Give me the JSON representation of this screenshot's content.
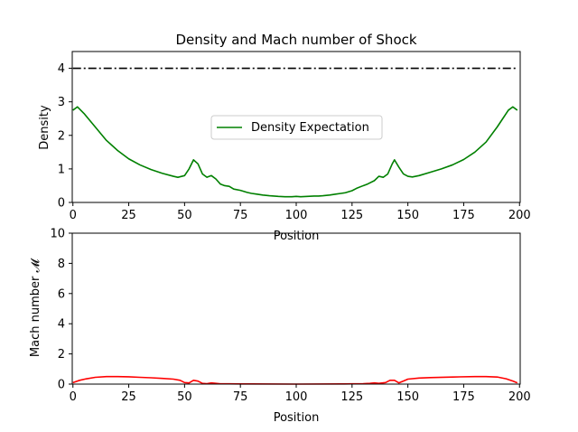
{
  "chart_data": [
    {
      "type": "line",
      "title": "Density and Mach number of Shock",
      "xlabel": "Position",
      "ylabel": "Density",
      "xlim": [
        0,
        200
      ],
      "ylim": [
        0,
        4.5
      ],
      "xticks": [
        0,
        25,
        50,
        75,
        100,
        125,
        150,
        175,
        200
      ],
      "yticks": [
        0,
        1,
        2,
        3,
        4
      ],
      "grid": false,
      "legend_position": "center",
      "series": [
        {
          "name": "Density Expectation",
          "color": "#008000",
          "style": "solid",
          "x": [
            0,
            2,
            5,
            10,
            15,
            20,
            25,
            30,
            35,
            40,
            45,
            47,
            50,
            52,
            54,
            56,
            58,
            60,
            62,
            64,
            66,
            68,
            70,
            72,
            75,
            78,
            80,
            82,
            85,
            88,
            90,
            92,
            95,
            98,
            100,
            102,
            105,
            108,
            110,
            112,
            115,
            118,
            120,
            122,
            125,
            127,
            130,
            132,
            135,
            137,
            139,
            141,
            143,
            144,
            146,
            148,
            150,
            152,
            155,
            160,
            165,
            170,
            175,
            180,
            185,
            190,
            193,
            195,
            197,
            199
          ],
          "values": [
            2.75,
            2.85,
            2.65,
            2.25,
            1.85,
            1.55,
            1.3,
            1.12,
            0.98,
            0.87,
            0.78,
            0.75,
            0.8,
            1.0,
            1.27,
            1.15,
            0.85,
            0.75,
            0.8,
            0.7,
            0.55,
            0.5,
            0.48,
            0.4,
            0.36,
            0.3,
            0.27,
            0.25,
            0.22,
            0.2,
            0.19,
            0.18,
            0.17,
            0.17,
            0.18,
            0.17,
            0.18,
            0.19,
            0.19,
            0.2,
            0.22,
            0.25,
            0.27,
            0.29,
            0.35,
            0.42,
            0.5,
            0.55,
            0.65,
            0.78,
            0.75,
            0.85,
            1.15,
            1.27,
            1.05,
            0.85,
            0.78,
            0.76,
            0.8,
            0.9,
            1.0,
            1.12,
            1.28,
            1.5,
            1.8,
            2.25,
            2.55,
            2.75,
            2.85,
            2.75
          ]
        },
        {
          "name": "",
          "color": "#000000",
          "style": "dashdot",
          "x": [
            0,
            199
          ],
          "values": [
            4,
            4
          ]
        }
      ]
    },
    {
      "type": "line",
      "title": "",
      "xlabel": "Position",
      "ylabel": "Mach number 𝓜",
      "xlim": [
        0,
        200
      ],
      "ylim": [
        0,
        10
      ],
      "xticks": [
        0,
        25,
        50,
        75,
        100,
        125,
        150,
        175,
        200
      ],
      "yticks": [
        0,
        2,
        4,
        6,
        8,
        10
      ],
      "grid": false,
      "series": [
        {
          "name": "",
          "color": "#ff0000",
          "style": "solid",
          "x": [
            0,
            3,
            6,
            10,
            15,
            20,
            25,
            30,
            35,
            40,
            45,
            48,
            50,
            52,
            54,
            56,
            58,
            60,
            62,
            64,
            66,
            70,
            75,
            80,
            100,
            120,
            125,
            130,
            133,
            135,
            137,
            140,
            142,
            144,
            146,
            148,
            150,
            155,
            160,
            170,
            180,
            185,
            190,
            194,
            197,
            199
          ],
          "values": [
            0.1,
            0.25,
            0.35,
            0.45,
            0.5,
            0.5,
            0.48,
            0.45,
            0.42,
            0.38,
            0.33,
            0.25,
            0.1,
            0.08,
            0.25,
            0.2,
            0.05,
            0.03,
            0.08,
            0.05,
            0.02,
            0.02,
            0.01,
            0.01,
            0.0,
            0.01,
            0.02,
            0.03,
            0.05,
            0.08,
            0.05,
            0.1,
            0.25,
            0.25,
            0.08,
            0.2,
            0.33,
            0.4,
            0.43,
            0.47,
            0.5,
            0.5,
            0.47,
            0.35,
            0.2,
            0.08
          ]
        }
      ]
    }
  ],
  "legend": {
    "label": "Density Expectation"
  }
}
